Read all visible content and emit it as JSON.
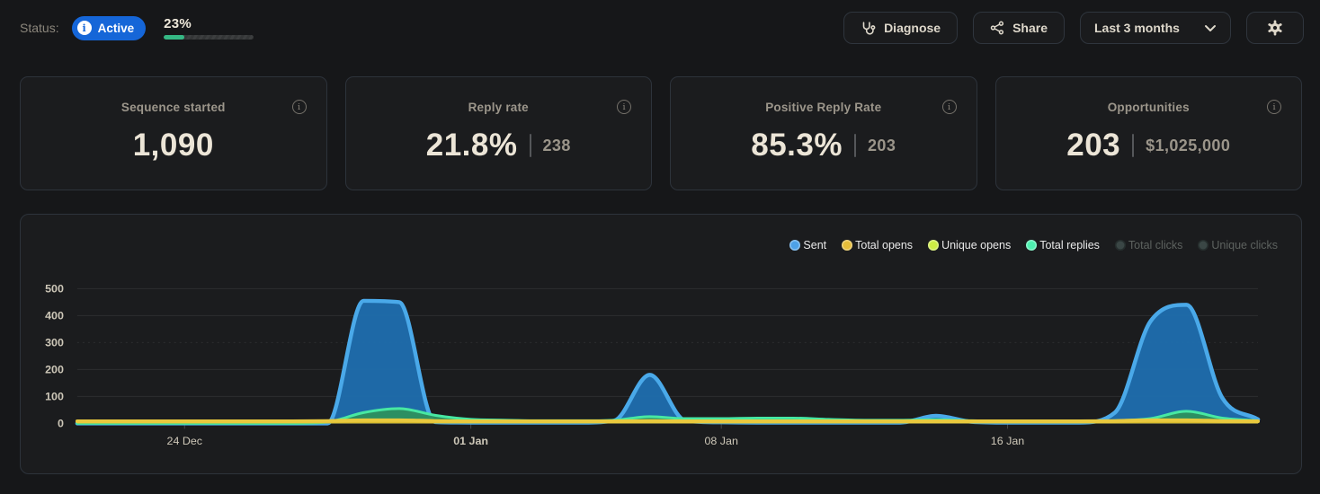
{
  "status_bar": {
    "label": "Status:",
    "badge": {
      "text": "Active",
      "color": "#1566d8"
    },
    "progress": {
      "percent_label": "23%",
      "percent": 23,
      "fill_color": "#35b884"
    }
  },
  "toolbar": {
    "diagnose_label": "Diagnose",
    "share_label": "Share",
    "period_selector": "Last 3 months"
  },
  "stat_cards": [
    {
      "title": "Sequence started",
      "value": "1,090",
      "secondary": null
    },
    {
      "title": "Reply rate",
      "value": "21.8%",
      "secondary": "238"
    },
    {
      "title": "Positive Reply Rate",
      "value": "85.3%",
      "secondary": "203"
    },
    {
      "title": "Opportunities",
      "value": "203",
      "secondary": "$1,025,000"
    }
  ],
  "chart_data": {
    "type": "area",
    "title": "",
    "x_unit": "day",
    "x_start": "21 Dec",
    "days_total": 33,
    "x_ticks": [
      {
        "day": 3,
        "label": "24 Dec",
        "bold": false
      },
      {
        "day": 11,
        "label": "01 Jan",
        "bold": true
      },
      {
        "day": 18,
        "label": "08 Jan",
        "bold": false
      },
      {
        "day": 26,
        "label": "16 Jan",
        "bold": false
      }
    ],
    "ylim": [
      0,
      500
    ],
    "y_ticks": [
      0,
      100,
      200,
      300,
      400,
      500
    ],
    "grid": true,
    "legend_position": "top-right",
    "series": [
      {
        "name": "Sent",
        "enabled": true,
        "z": 1,
        "dot": "#4da1e8",
        "stroke": "#4aa9e9",
        "fill": "#1f6cab",
        "stroke_width": 4.5,
        "values": [
          0,
          0,
          0,
          0,
          0,
          0,
          0,
          0,
          455,
          450,
          5,
          3,
          3,
          3,
          3,
          10,
          180,
          10,
          4,
          3,
          3,
          3,
          3,
          3,
          28,
          6,
          3,
          3,
          3,
          40,
          380,
          440,
          95,
          15
        ]
      },
      {
        "name": "Total opens",
        "enabled": true,
        "z": 4,
        "dot": "#e6bd3a",
        "stroke": "#e9c93e",
        "fill": "#d9b92f",
        "stroke_width": 4,
        "values": [
          8,
          8,
          8,
          8,
          8,
          8,
          8,
          9,
          12,
          12,
          9,
          8,
          8,
          8,
          8,
          8,
          9,
          8,
          8,
          8,
          8,
          8,
          8,
          8,
          8,
          8,
          8,
          8,
          8,
          9,
          12,
          12,
          9,
          8
        ]
      },
      {
        "name": "Unique opens",
        "enabled": true,
        "z": 3,
        "dot": "#cdec45",
        "stroke": "#cde53f",
        "fill": "#9fb836",
        "stroke_width": 2.5,
        "values": [
          5,
          5,
          5,
          5,
          5,
          5,
          5,
          5,
          6,
          6,
          5,
          5,
          5,
          5,
          5,
          5,
          6,
          5,
          5,
          5,
          5,
          5,
          5,
          5,
          5,
          5,
          5,
          5,
          5,
          5,
          6,
          6,
          5,
          5
        ]
      },
      {
        "name": "Total replies",
        "enabled": true,
        "z": 2,
        "dot": "#4ef0b0",
        "stroke": "#47e8a2",
        "fill": "#2c9160",
        "stroke_width": 3,
        "values": [
          0,
          0,
          0,
          0,
          0,
          0,
          0,
          5,
          40,
          55,
          30,
          15,
          12,
          10,
          10,
          12,
          25,
          18,
          18,
          20,
          20,
          15,
          12,
          12,
          14,
          10,
          8,
          8,
          8,
          10,
          18,
          45,
          20,
          10
        ]
      },
      {
        "name": "Total clicks",
        "enabled": false,
        "z": 0,
        "dot": "#3a4645",
        "values": []
      },
      {
        "name": "Unique clicks",
        "enabled": false,
        "z": 0,
        "dot": "#3a4645",
        "values": []
      }
    ]
  }
}
